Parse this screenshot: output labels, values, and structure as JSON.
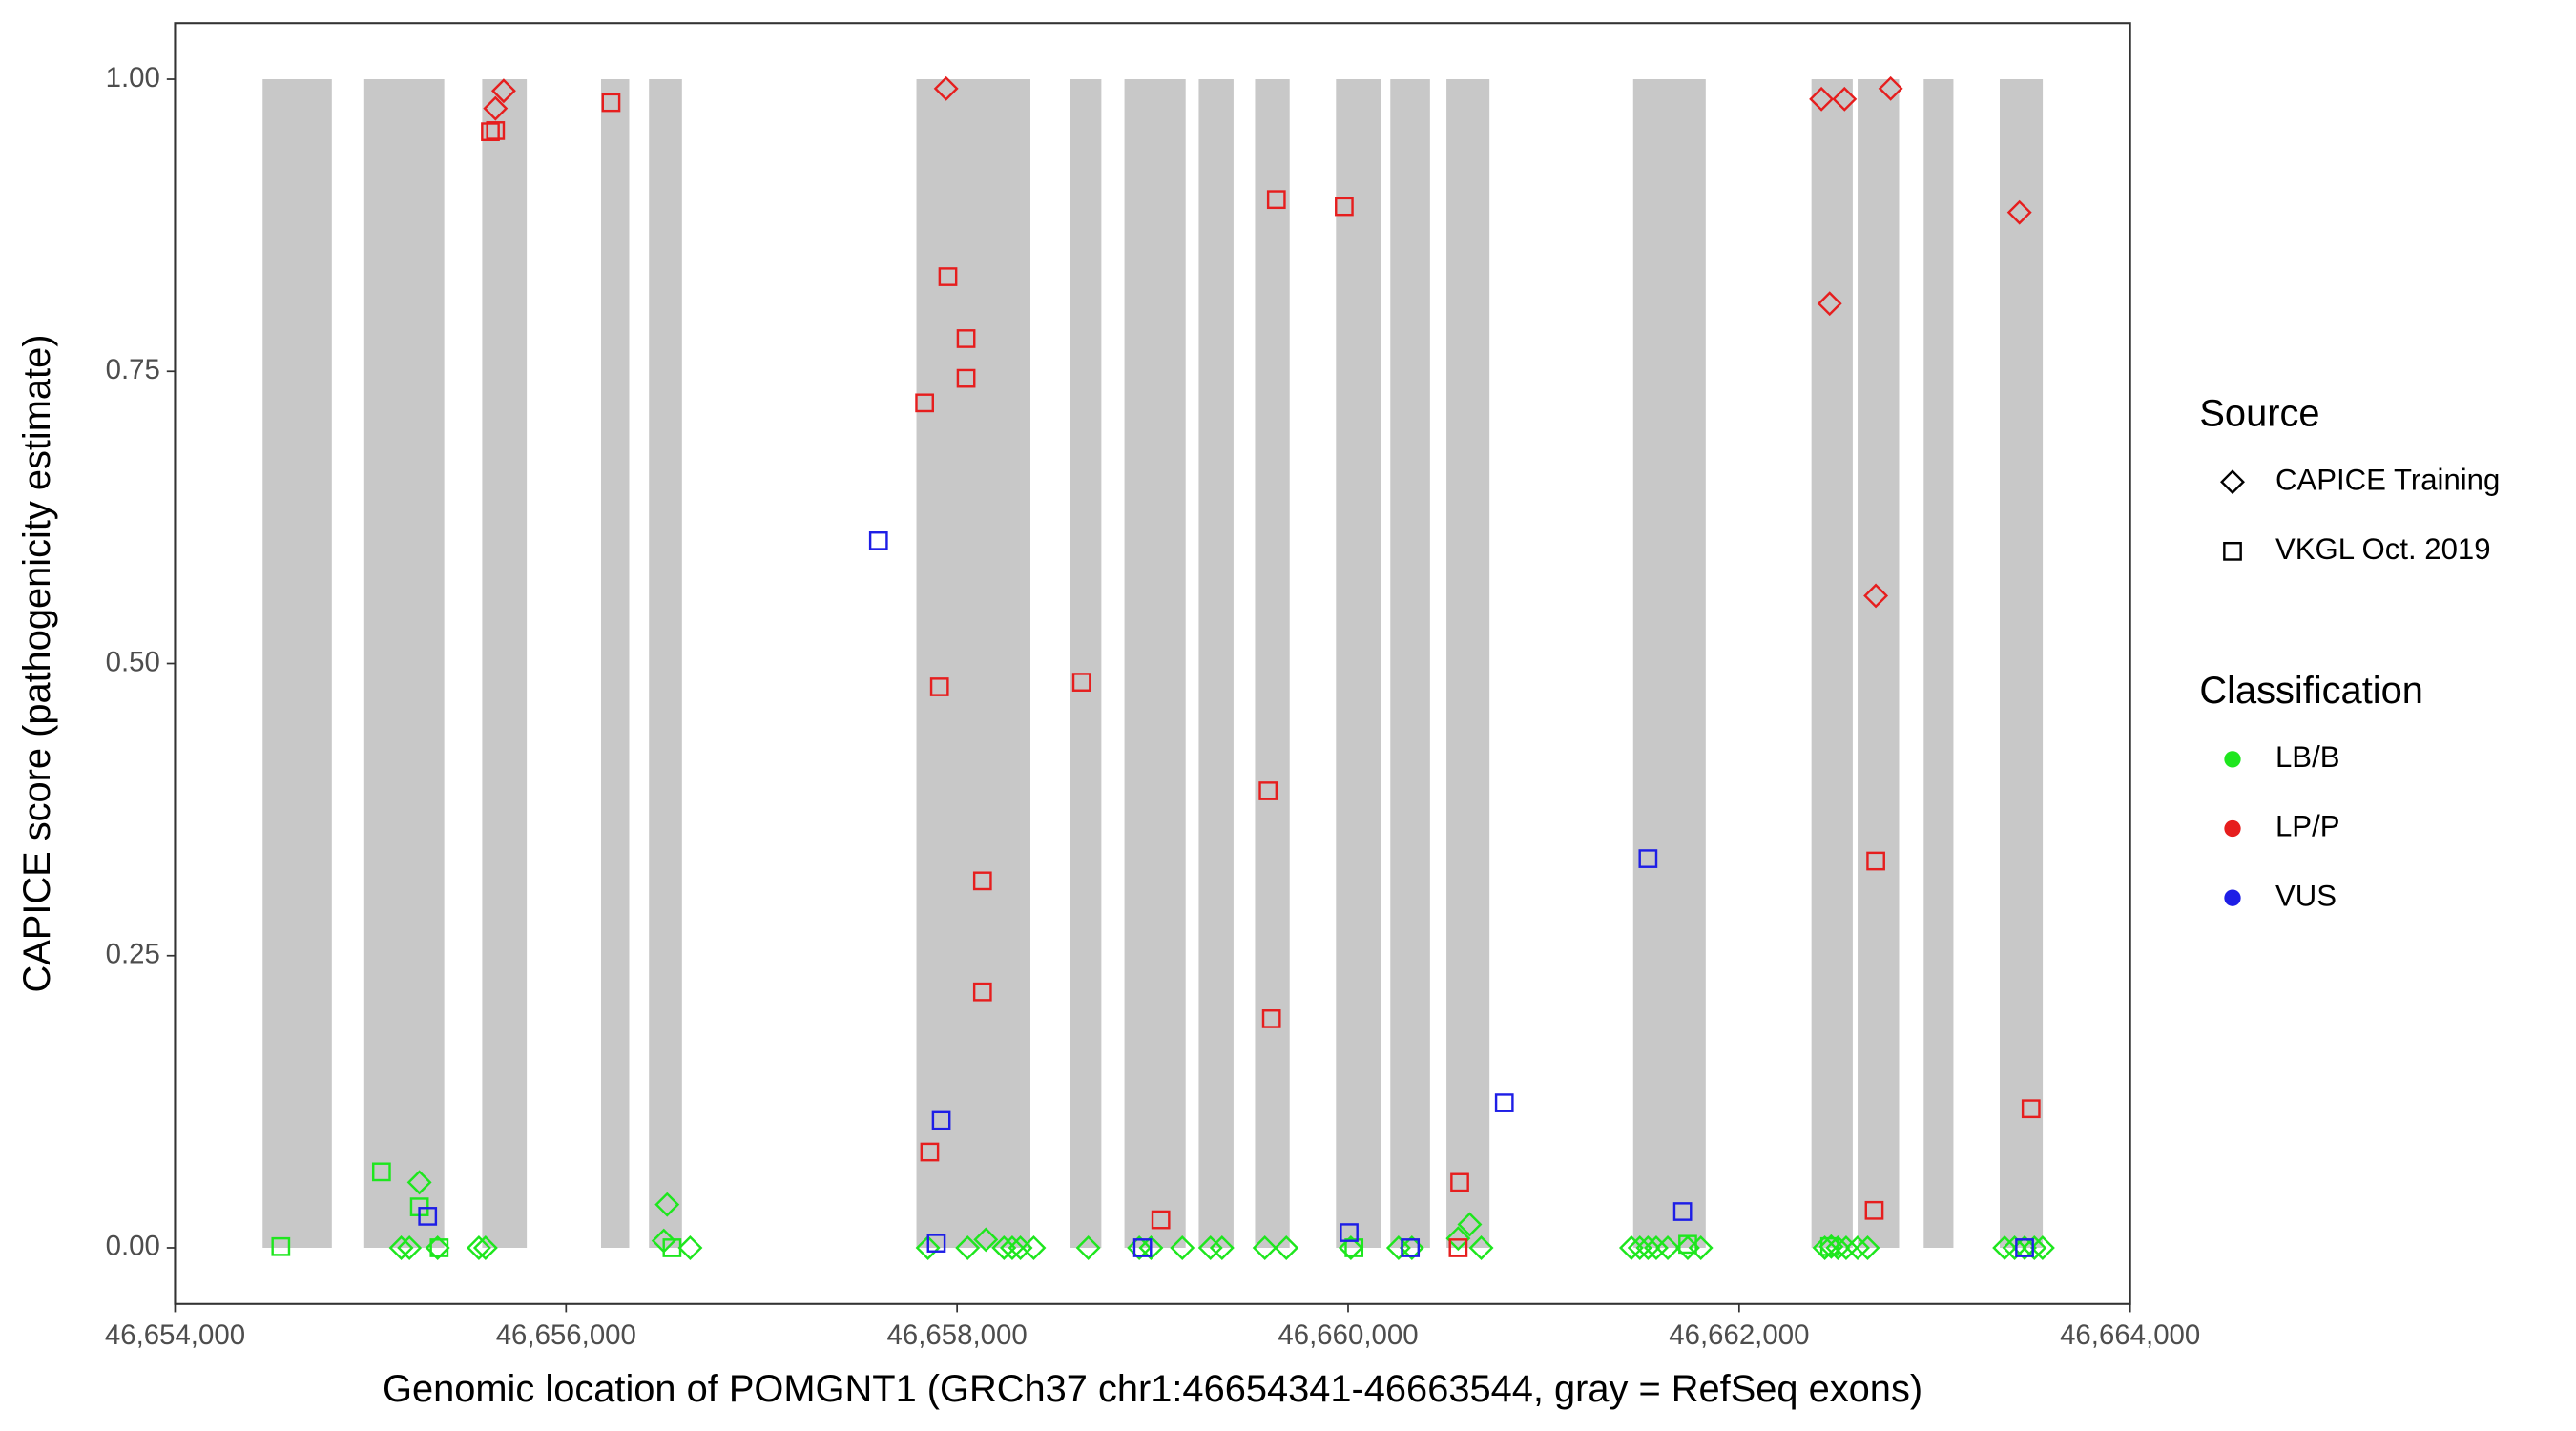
{
  "chart_data": {
    "type": "scatter",
    "xlabel": "Genomic location of POMGNT1 (GRCh37 chr1:46654341-46663544, gray = RefSeq exons)",
    "ylabel": "CAPICE score (pathogenicity estimate)",
    "xlim": [
      46654000,
      46664000
    ],
    "ylim": [
      -0.048,
      1.048
    ],
    "xticks": [
      {
        "value": 46654000,
        "label": "46,654,000"
      },
      {
        "value": 46656000,
        "label": "46,656,000"
      },
      {
        "value": 46658000,
        "label": "46,658,000"
      },
      {
        "value": 46660000,
        "label": "46,660,000"
      },
      {
        "value": 46662000,
        "label": "46,662,000"
      },
      {
        "value": 46664000,
        "label": "46,664,000"
      }
    ],
    "yticks": [
      {
        "value": 0,
        "label": "0.00"
      },
      {
        "value": 0.25,
        "label": "0.25"
      },
      {
        "value": 0.5,
        "label": "0.50"
      },
      {
        "value": 0.75,
        "label": "0.75"
      },
      {
        "value": 1,
        "label": "1.00"
      }
    ],
    "grid": false,
    "exon_color": "#c8c8c8",
    "exons": [
      [
        46654448,
        46654802
      ],
      [
        46654963,
        46655377
      ],
      [
        46655571,
        46655799
      ],
      [
        46656179,
        46656323
      ],
      [
        46656424,
        46656593
      ],
      [
        46657792,
        46658375
      ],
      [
        46658578,
        46658738
      ],
      [
        46658856,
        46659169
      ],
      [
        46659236,
        46659414
      ],
      [
        46659524,
        46659701
      ],
      [
        46659938,
        46660166
      ],
      [
        46660216,
        46660419
      ],
      [
        46660503,
        46660723
      ],
      [
        46661458,
        46661829
      ],
      [
        46662370,
        46662581
      ],
      [
        46662606,
        46662818
      ],
      [
        46662944,
        46663096
      ],
      [
        46663333,
        46663553
      ]
    ],
    "legend_position": "right",
    "source_legend_title": "Source",
    "classification_legend_title": "Classification",
    "classifications": [
      {
        "name": "LB/B",
        "color": "#1ee61e"
      },
      {
        "name": "LP/P",
        "color": "#e61e1e"
      },
      {
        "name": "VUS",
        "color": "#1e1ee6"
      }
    ],
    "sources": [
      {
        "name": "CAPICE Training",
        "marker": "diamond",
        "series": [
          {
            "x": [
              46655250,
              46656517,
              46656500,
              46656635,
              46655157,
              46655199,
              46655343,
              46655554,
              46655588,
              46657851,
              46658054,
              46658147,
              46658240,
              46658282,
              46658324,
              46658392,
              46658671,
              46658932,
              46658992,
              46659152,
              46659296,
              46659355,
              46659574,
              46659684,
              46660014,
              46660258,
              46660326,
              46660622,
              46660563,
              46660681,
              46661449,
              46661492,
              46661534,
              46661576,
              46661635,
              46661737,
              46661804,
              46662438,
              46662471,
              46662505,
              46662547,
              46662606,
              46662657,
              46663358,
              46663409,
              46663460,
              46663510,
              46663552
            ],
            "y": [
              0.056,
              0.037,
              0.006,
              0,
              0,
              0,
              0,
              0,
              0,
              0,
              0,
              0.007,
              0,
              0,
              0,
              0,
              0,
              0,
              0,
              0,
              0,
              0,
              0,
              0,
              0,
              0,
              0,
              0.02,
              0.008,
              0,
              0,
              0,
              0,
              0,
              0,
              0,
              0,
              0,
              0.001,
              0,
              0,
              0,
              0,
              0,
              0,
              0,
              0,
              0
            ]
          },
          {
            "x": [
              46655681,
              46655639,
              46657944,
              46662421,
              46662539,
              46662775,
              46663434,
              46662463,
              46662699
            ],
            "y": [
              0.99,
              0.975,
              0.992,
              0.983,
              0.983,
              0.992,
              0.886,
              0.808,
              0.558
            ]
          },
          {
            "x": [],
            "y": []
          }
        ]
      },
      {
        "name": "VKGL Oct. 2019",
        "marker": "square",
        "series": [
          {
            "x": [
              46654541,
              46655056,
              46655250,
              46655351,
              46656542,
              46660030,
              46661737,
              46662463
            ],
            "y": [
              0.001,
              0.065,
              0.035,
              0,
              0,
              0,
              0.003,
              0.001
            ]
          },
          {
            "x": [
              46655613,
              46655639,
              46656230,
              46657953,
              46658046,
              46658046,
              46657834,
              46657910,
              46658637,
              46659633,
              46659980,
              46659591,
              46658130,
              46658130,
              46659608,
              46657860,
              46659042,
              46660571,
              46660563,
              46662699,
              46662691,
              46663493
            ],
            "y": [
              0.955,
              0.956,
              0.98,
              0.831,
              0.778,
              0.744,
              0.723,
              0.48,
              0.484,
              0.897,
              0.891,
              0.391,
              0.314,
              0.219,
              0.196,
              0.082,
              0.024,
              0.056,
              0,
              0.331,
              0.032,
              0.119
            ]
          },
          {
            "x": [
              46657598,
              46657919,
              46657894,
              46655292,
              46658949,
              46660005,
              46660318,
              46660799,
              46661534,
              46661711,
              46663460
            ],
            "y": [
              0.605,
              0.109,
              0.004,
              0.027,
              0,
              0.013,
              0,
              0.124,
              0.333,
              0.031,
              0
            ]
          }
        ]
      }
    ]
  }
}
